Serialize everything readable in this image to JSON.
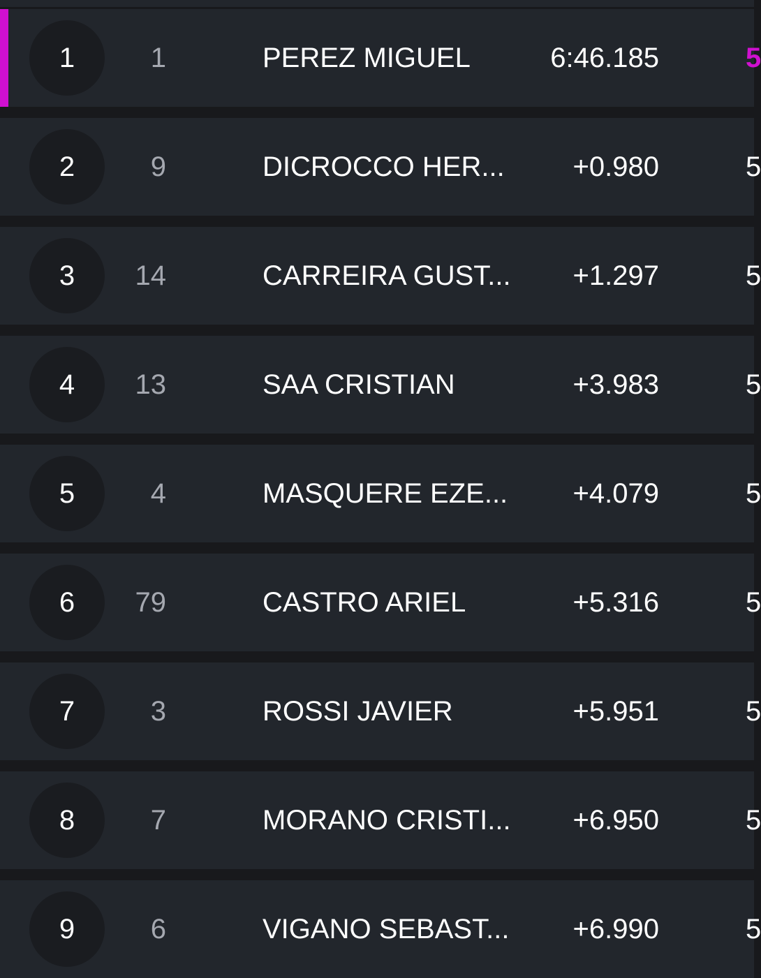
{
  "accent_color": "#d010d0",
  "rows": [
    {
      "position": "1",
      "number": "1",
      "name": "PEREZ MIGUEL",
      "time": "6:46.185",
      "laps": "5",
      "leader": true
    },
    {
      "position": "2",
      "number": "9",
      "name": "DICROCCO HER...",
      "time": "+0.980",
      "laps": "5"
    },
    {
      "position": "3",
      "number": "14",
      "name": "CARREIRA GUST...",
      "time": "+1.297",
      "laps": "5"
    },
    {
      "position": "4",
      "number": "13",
      "name": "SAA CRISTIAN",
      "time": "+3.983",
      "laps": "5"
    },
    {
      "position": "5",
      "number": "4",
      "name": "MASQUERE EZE...",
      "time": "+4.079",
      "laps": "5"
    },
    {
      "position": "6",
      "number": "79",
      "name": "CASTRO ARIEL",
      "time": "+5.316",
      "laps": "5"
    },
    {
      "position": "7",
      "number": "3",
      "name": "ROSSI JAVIER",
      "time": "+5.951",
      "laps": "5"
    },
    {
      "position": "8",
      "number": "7",
      "name": "MORANO CRISTI...",
      "time": "+6.950",
      "laps": "5"
    },
    {
      "position": "9",
      "number": "6",
      "name": "VIGANO SEBAST...",
      "time": "+6.990",
      "laps": "5"
    }
  ]
}
